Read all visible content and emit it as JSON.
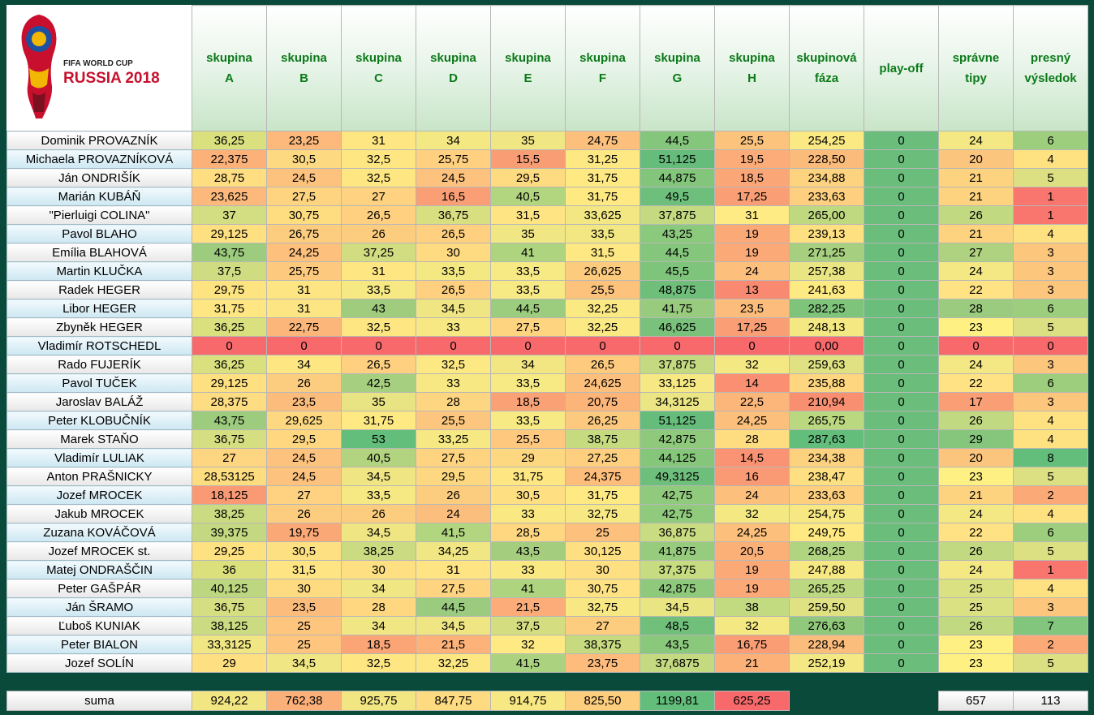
{
  "logo": {
    "line1": "FIFA WORLD CUP",
    "line2": "RUSSIA 2018"
  },
  "headers": [
    [
      "skupina",
      "A"
    ],
    [
      "skupina",
      "B"
    ],
    [
      "skupina",
      "C"
    ],
    [
      "skupina",
      "D"
    ],
    [
      "skupina",
      "E"
    ],
    [
      "skupina",
      "F"
    ],
    [
      "skupina",
      "G"
    ],
    [
      "skupina",
      "H"
    ],
    [
      "skupinová",
      "fáza"
    ],
    [
      "play-off",
      ""
    ],
    [
      "správne",
      "tipy"
    ],
    [
      "presný",
      "výsledok"
    ]
  ],
  "rows": [
    {
      "name": "Dominik PROVAZNÍK",
      "cells": [
        "36,25",
        "23,25",
        "31",
        "34",
        "35",
        "24,75",
        "44,5",
        "25,5",
        "254,25",
        "0",
        "24",
        "6"
      ],
      "colors": [
        "#d9e07d",
        "#fcb97b",
        "#fee783",
        "#f4e883",
        "#f0e683",
        "#fdbf7c",
        "#84c67b",
        "#fcc37d",
        "#fbe983",
        "#6abd7b",
        "#f3e883",
        "#9dce7e"
      ]
    },
    {
      "name": "Michaela PROVAZNÍKOVÁ",
      "cells": [
        "22,375",
        "30,5",
        "32,5",
        "25,75",
        "15,5",
        "31,25",
        "51,125",
        "19,5",
        "228,50",
        "0",
        "20",
        "4"
      ],
      "colors": [
        "#fcb179",
        "#fdd981",
        "#fee783",
        "#fed07f",
        "#f99d75",
        "#fee883",
        "#65bc7b",
        "#fcac78",
        "#fbbb7b",
        "#6abd7b",
        "#fcc57d",
        "#fee282"
      ]
    },
    {
      "name": "Ján ONDRIŠÍK",
      "cells": [
        "28,75",
        "24,5",
        "32,5",
        "24,5",
        "29,5",
        "31,75",
        "44,875",
        "18,5",
        "234,88",
        "0",
        "21",
        "5"
      ],
      "colors": [
        "#fede81",
        "#fdc27d",
        "#fee783",
        "#fdc27d",
        "#feda80",
        "#fee983",
        "#82c57b",
        "#fba677",
        "#fdd37f",
        "#6abd7b",
        "#fdd37f",
        "#dce082"
      ]
    },
    {
      "name": "Marián KUBÁŇ",
      "cells": [
        "23,625",
        "27,5",
        "27",
        "16,5",
        "40,5",
        "31,75",
        "49,5",
        "17,25",
        "233,63",
        "0",
        "21",
        "1"
      ],
      "colors": [
        "#fcb97b",
        "#fed480",
        "#fed280",
        "#f99e75",
        "#b2d67f",
        "#fee983",
        "#6dbf7b",
        "#fa9f75",
        "#fdcf7f",
        "#6abd7b",
        "#fdd37f",
        "#f8766d"
      ]
    },
    {
      "name": "\"Pierluigi COLINA\"",
      "cells": [
        "37",
        "30,75",
        "26,5",
        "36,75",
        "31,5",
        "33,625",
        "37,875",
        "31",
        "265,00",
        "0",
        "26",
        "1"
      ],
      "colors": [
        "#d3dd81",
        "#fedd81",
        "#fed07f",
        "#d8df81",
        "#fee483",
        "#f2e783",
        "#c3da80",
        "#ffeb84",
        "#bfd981",
        "#6abd7b",
        "#c1d981",
        "#f8766d"
      ]
    },
    {
      "name": "Pavol BLAHO",
      "cells": [
        "29,125",
        "26,75",
        "26",
        "26,5",
        "35",
        "33,5",
        "43,25",
        "19",
        "239,13",
        "0",
        "21",
        "4"
      ],
      "colors": [
        "#fee081",
        "#fdcd7f",
        "#fdcd7f",
        "#fed07f",
        "#f0e683",
        "#f2e783",
        "#8bc97c",
        "#fba977",
        "#fee081",
        "#6abd7b",
        "#fdd37f",
        "#fee282"
      ]
    },
    {
      "name": "Emília BLAHOVÁ",
      "cells": [
        "43,75",
        "24,25",
        "37,25",
        "30",
        "41",
        "31,5",
        "44,5",
        "19",
        "271,25",
        "0",
        "27",
        "3"
      ],
      "colors": [
        "#9dcc7e",
        "#fdc07d",
        "#d2dd81",
        "#feda81",
        "#afd47f",
        "#fee883",
        "#84c67b",
        "#fba977",
        "#a6d07f",
        "#6abd7b",
        "#aed27f",
        "#fdc67d"
      ]
    },
    {
      "name": "Martin KLUČKA",
      "cells": [
        "37,5",
        "25,75",
        "31",
        "33,5",
        "33,5",
        "26,625",
        "45,5",
        "24",
        "257,38",
        "0",
        "24",
        "3"
      ],
      "colors": [
        "#d0dc81",
        "#fdc97e",
        "#fee783",
        "#f4e883",
        "#f7e983",
        "#fdcb7e",
        "#7fc47b",
        "#fcbf7c",
        "#eae583",
        "#6abd7b",
        "#f3e883",
        "#fdc67d"
      ]
    },
    {
      "name": "Radek HEGER",
      "cells": [
        "29,75",
        "31",
        "33,5",
        "26,5",
        "33,5",
        "25,5",
        "48,875",
        "13",
        "241,63",
        "0",
        "22",
        "3"
      ],
      "colors": [
        "#fee481",
        "#fee583",
        "#f6e883",
        "#fed07f",
        "#f7e983",
        "#fdc37d",
        "#6fbf7b",
        "#f98970",
        "#feea83",
        "#6abd7b",
        "#fee283",
        "#fdc67d"
      ]
    },
    {
      "name": "Libor HEGER",
      "cells": [
        "31,75",
        "31",
        "43",
        "34,5",
        "44,5",
        "32,25",
        "41,75",
        "23,5",
        "282,25",
        "0",
        "28",
        "6"
      ],
      "colors": [
        "#fee783",
        "#fee583",
        "#a0cc7e",
        "#efe583",
        "#9ccc7e",
        "#fbe983",
        "#98cb7d",
        "#fcbc7b",
        "#7fc47b",
        "#6abd7b",
        "#9bcb7e",
        "#9dce7e"
      ]
    },
    {
      "name": "Zbyněk HEGER",
      "cells": [
        "36,25",
        "22,75",
        "32,5",
        "33",
        "27,5",
        "32,25",
        "46,625",
        "17,25",
        "248,13",
        "0",
        "23",
        "5"
      ],
      "colors": [
        "#d9e07d",
        "#fcb67a",
        "#fee783",
        "#f8e883",
        "#fed480",
        "#fbe983",
        "#7ac27b",
        "#fa9f75",
        "#f4e883",
        "#6abd7b",
        "#fef083",
        "#dce082"
      ]
    },
    {
      "name": "Vladimír ROTSCHEDL",
      "cells": [
        "0",
        "0",
        "0",
        "0",
        "0",
        "0",
        "0",
        "0",
        "0,00",
        "0",
        "0",
        "0"
      ],
      "colors": [
        "#f8696b",
        "#f8696b",
        "#f8696b",
        "#f8696b",
        "#f8696b",
        "#f8696b",
        "#f8696b",
        "#f8696b",
        "#f8696b",
        "#6abd7b",
        "#f8696b",
        "#f8696b"
      ]
    },
    {
      "name": "Rado FUJERÍK",
      "cells": [
        "36,25",
        "34",
        "26,5",
        "32,5",
        "34",
        "26,5",
        "37,875",
        "32",
        "259,63",
        "0",
        "24",
        "3"
      ],
      "colors": [
        "#d9e07d",
        "#fee683",
        "#fed07f",
        "#fde983",
        "#f2e683",
        "#fdca7e",
        "#c3da80",
        "#f4e883",
        "#dfe182",
        "#6abd7b",
        "#f3e883",
        "#fdc67d"
      ]
    },
    {
      "name": "Pavol TUČEK",
      "cells": [
        "29,125",
        "26",
        "42,5",
        "33",
        "33,5",
        "24,625",
        "33,125",
        "14",
        "235,88",
        "0",
        "22",
        "6"
      ],
      "colors": [
        "#fee081",
        "#fdcd7f",
        "#a6cf7f",
        "#f8e883",
        "#f7e983",
        "#fdbf7c",
        "#f6e883",
        "#fa8f71",
        "#fdd67f",
        "#6abd7b",
        "#fee283",
        "#9dce7e"
      ]
    },
    {
      "name": "Jaroslav BALÁŽ",
      "cells": [
        "28,375",
        "23,5",
        "35",
        "28",
        "18,5",
        "20,75",
        "34,3125",
        "22,5",
        "210,94",
        "0",
        "17",
        "3"
      ],
      "colors": [
        "#fedc81",
        "#fcbd7c",
        "#e8e383",
        "#fed580",
        "#faa276",
        "#fcb479",
        "#ebe583",
        "#fcb679",
        "#f98f71",
        "#6abd7b",
        "#fa9f75",
        "#fdc67d"
      ]
    },
    {
      "name": "Peter KLOBUČNÍK",
      "cells": [
        "43,75",
        "29,625",
        "31,75",
        "25,5",
        "33,5",
        "26,25",
        "51,125",
        "24,25",
        "265,75",
        "0",
        "26",
        "4"
      ],
      "colors": [
        "#9dcc7e",
        "#fed880",
        "#fee983",
        "#fdc67e",
        "#f7e983",
        "#fdc97e",
        "#65bc7b",
        "#fcc07c",
        "#bad880",
        "#6abd7b",
        "#c1d981",
        "#fee282"
      ]
    },
    {
      "name": "Marek STAŇO",
      "cells": [
        "36,75",
        "29,5",
        "53",
        "33,25",
        "25,5",
        "38,75",
        "42,875",
        "28",
        "287,63",
        "0",
        "29",
        "4"
      ],
      "colors": [
        "#d5de81",
        "#fed780",
        "#63be7b",
        "#f6e883",
        "#fec87e",
        "#c6da80",
        "#8fc97c",
        "#fedd81",
        "#63be7b",
        "#6abd7b",
        "#85c67c",
        "#fee282"
      ]
    },
    {
      "name": "Vladimír LULIAK",
      "cells": [
        "27",
        "24,5",
        "40,5",
        "27,5",
        "29",
        "27,25",
        "44,125",
        "14,5",
        "234,38",
        "0",
        "20",
        "8"
      ],
      "colors": [
        "#fed580",
        "#fdc27d",
        "#b2d37f",
        "#fed480",
        "#fed880",
        "#fdcf7f",
        "#85c67b",
        "#f99373",
        "#fdd27f",
        "#6abd7b",
        "#fcc57d",
        "#63be7b"
      ]
    },
    {
      "name": "Anton PRAŠNICKY",
      "cells": [
        "28,53125",
        "24,5",
        "34,5",
        "29,5",
        "31,75",
        "24,375",
        "49,3125",
        "16",
        "238,47",
        "0",
        "23",
        "5"
      ],
      "colors": [
        "#fedd81",
        "#fdc27d",
        "#efe583",
        "#fed880",
        "#fee783",
        "#fdbe7c",
        "#6ebf7b",
        "#fa9a74",
        "#fedf81",
        "#6abd7b",
        "#fef083",
        "#dce082"
      ]
    },
    {
      "name": "Jozef MROCEK",
      "cells": [
        "18,125",
        "27",
        "33,5",
        "26",
        "30,5",
        "31,75",
        "42,75",
        "24",
        "233,63",
        "0",
        "21",
        "2"
      ],
      "colors": [
        "#fa9a74",
        "#fed280",
        "#f6e883",
        "#fdcd7f",
        "#fee083",
        "#fee983",
        "#90ca7c",
        "#fcbf7c",
        "#fdcf7f",
        "#6abd7b",
        "#fdd37f",
        "#fbaa77"
      ]
    },
    {
      "name": "Jakub MROCEK",
      "cells": [
        "38,25",
        "26",
        "26",
        "24",
        "33",
        "32,75",
        "42,75",
        "32",
        "254,75",
        "0",
        "24",
        "4"
      ],
      "colors": [
        "#cbdb81",
        "#fdcd7f",
        "#fdcd7f",
        "#fcbe7c",
        "#fae983",
        "#f8e883",
        "#90ca7c",
        "#f4e883",
        "#f7e883",
        "#6abd7b",
        "#f3e883",
        "#fee282"
      ]
    },
    {
      "name": "Zuzana KOVÁČOVÁ",
      "cells": [
        "39,375",
        "19,75",
        "34,5",
        "41,5",
        "28,5",
        "25",
        "36,875",
        "24,25",
        "249,75",
        "0",
        "22",
        "6"
      ],
      "colors": [
        "#c3d880",
        "#fba877",
        "#efe583",
        "#b2d57f",
        "#fed780",
        "#fdc07d",
        "#cadc81",
        "#fcc07c",
        "#fee983",
        "#6abd7b",
        "#fee283",
        "#9dce7e"
      ]
    },
    {
      "name": "Jozef MROCEK st.",
      "cells": [
        "29,25",
        "30,5",
        "38,25",
        "34,25",
        "43,5",
        "30,125",
        "41,875",
        "20,5",
        "268,25",
        "0",
        "26",
        "5"
      ],
      "colors": [
        "#fee181",
        "#fde081",
        "#cbdb81",
        "#f0e683",
        "#a4ce7e",
        "#fee083",
        "#97cb7d",
        "#fbb078",
        "#b0d47f",
        "#6abd7b",
        "#c1d981",
        "#dce082"
      ]
    },
    {
      "name": "Matej ONDRAŠČIN",
      "cells": [
        "36",
        "31,5",
        "30",
        "31",
        "33",
        "30",
        "37,375",
        "19",
        "247,88",
        "0",
        "24",
        "1"
      ],
      "colors": [
        "#dbe07d",
        "#fee483",
        "#fedf81",
        "#fee483",
        "#fae983",
        "#fedf81",
        "#c7db80",
        "#fba977",
        "#f6e883",
        "#6abd7b",
        "#f3e883",
        "#f8766d"
      ]
    },
    {
      "name": "Peter GAŠPÁR",
      "cells": [
        "40,125",
        "30",
        "34",
        "27,5",
        "41",
        "30,75",
        "42,875",
        "19",
        "265,25",
        "0",
        "25",
        "4"
      ],
      "colors": [
        "#bdd780",
        "#feda80",
        "#f0e683",
        "#fed480",
        "#afd47f",
        "#fee283",
        "#8fc97c",
        "#fba977",
        "#bcd880",
        "#6abd7b",
        "#dae182",
        "#fee282"
      ]
    },
    {
      "name": "Ján ŠRAMO",
      "cells": [
        "36,75",
        "23,5",
        "28",
        "44,5",
        "21,5",
        "32,75",
        "34,5",
        "38",
        "259,50",
        "0",
        "25",
        "3"
      ],
      "colors": [
        "#d5de81",
        "#fcbd7c",
        "#fed780",
        "#9acb7e",
        "#fbac78",
        "#f8e883",
        "#eae583",
        "#c2da80",
        "#dfe182",
        "#6abd7b",
        "#dae182",
        "#fdc67d"
      ]
    },
    {
      "name": "Ľuboš KUNIAK",
      "cells": [
        "38,125",
        "25",
        "34",
        "34,5",
        "37,5",
        "27",
        "48,5",
        "32",
        "276,63",
        "0",
        "26",
        "7"
      ],
      "colors": [
        "#cbdb81",
        "#fdc57e",
        "#f0e683",
        "#efe583",
        "#d4de81",
        "#fdcd7f",
        "#70c07b",
        "#f4e883",
        "#91c97c",
        "#6abd7b",
        "#c1d981",
        "#81c67c"
      ]
    },
    {
      "name": "Peter BIALON",
      "cells": [
        "33,3125",
        "25",
        "18,5",
        "21,5",
        "32",
        "38,375",
        "43,5",
        "16,75",
        "228,94",
        "0",
        "23",
        "2"
      ],
      "colors": [
        "#f0e683",
        "#fdc57e",
        "#fba476",
        "#fcb279",
        "#fee983",
        "#c8da80",
        "#8ac87c",
        "#fa9d75",
        "#fbbd7b",
        "#6abd7b",
        "#fef083",
        "#fbaa77"
      ]
    },
    {
      "name": "Jozef SOLÍN",
      "cells": [
        "29",
        "34,5",
        "32,5",
        "32,25",
        "41,5",
        "23,75",
        "37,6875",
        "21",
        "252,19",
        "0",
        "23",
        "5"
      ],
      "colors": [
        "#fedf81",
        "#f0e683",
        "#fee783",
        "#fde783",
        "#abd37f",
        "#fdbc7c",
        "#c4da80",
        "#fbb178",
        "#f3e883",
        "#6abd7b",
        "#fef083",
        "#dce082"
      ]
    }
  ],
  "sum": {
    "label": "suma",
    "values": [
      "924,22",
      "762,38",
      "925,75",
      "847,75",
      "914,75",
      "825,50",
      "1199,81",
      "625,25"
    ],
    "colors": [
      "#f2e683",
      "#fcb079",
      "#f2e683",
      "#fedb81",
      "#f8e883",
      "#fece7f",
      "#63be7b",
      "#f8696b"
    ],
    "tips": [
      "657",
      "113"
    ]
  }
}
